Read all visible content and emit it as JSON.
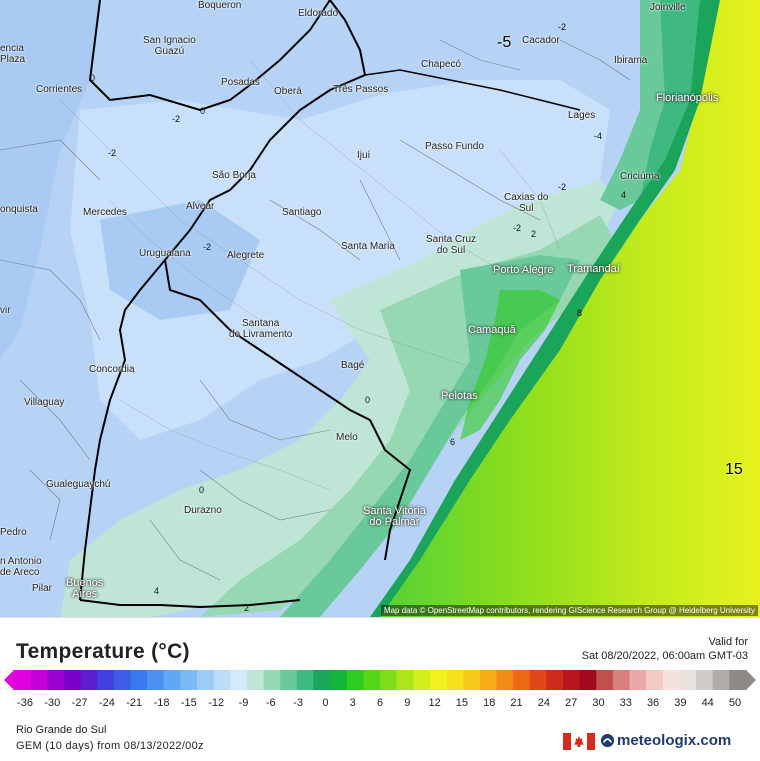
{
  "map": {
    "attribution": "Map data © OpenStreetMap contributors, rendering GIScience Research Group @ Heidelberg University",
    "cities": [
      {
        "name": "Boqueron"
      },
      {
        "name": "Eldorado"
      },
      {
        "name": "Joinville"
      },
      {
        "name": "San Ignacio\nGuazú"
      },
      {
        "name": "Cacador"
      },
      {
        "name": "Ibirama"
      },
      {
        "name": "encia\nPlaza"
      },
      {
        "name": "Corrientes"
      },
      {
        "name": "Posadas"
      },
      {
        "name": "Oberá"
      },
      {
        "name": "Chapecó"
      },
      {
        "name": "Três Passos"
      },
      {
        "name": "Florianópolis"
      },
      {
        "name": "Lages"
      },
      {
        "name": "Passo Fundo"
      },
      {
        "name": "Ijuí"
      },
      {
        "name": "São Borja"
      },
      {
        "name": "Criciúma"
      },
      {
        "name": "onquista"
      },
      {
        "name": "Mercedes"
      },
      {
        "name": "Alvear"
      },
      {
        "name": "Santiago"
      },
      {
        "name": "Caxias do\nSul"
      },
      {
        "name": "Uruguaiana"
      },
      {
        "name": "Alegrete"
      },
      {
        "name": "Santa Maria"
      },
      {
        "name": "Santa Cruz\ndo Sul"
      },
      {
        "name": "Porto Alegre"
      },
      {
        "name": "Tramandaí"
      },
      {
        "name": "vir"
      },
      {
        "name": "Santana\ndo Livramento"
      },
      {
        "name": "Camaquã"
      },
      {
        "name": "Concordia"
      },
      {
        "name": "Bagé"
      },
      {
        "name": "Villaguay"
      },
      {
        "name": "Pelotas"
      },
      {
        "name": "Melo"
      },
      {
        "name": "Gualeguaychú"
      },
      {
        "name": "Santa Vitória\ndo Palmar"
      },
      {
        "name": "Durazno"
      },
      {
        "name": "Pedro"
      },
      {
        "name": "n Antonio\nde Areco"
      },
      {
        "name": "Pilar"
      },
      {
        "name": "Buenos\nAires"
      }
    ],
    "contour_labels": [
      "-5",
      "-2",
      "-2",
      "-4",
      "-2",
      "0",
      "-2",
      "-2",
      "-2",
      "0",
      "2",
      "4",
      "0",
      "8",
      "6",
      "0",
      "4",
      "2",
      "15"
    ]
  },
  "footer": {
    "title": "Temperature (°C)",
    "valid_label": "Valid for",
    "valid_date": "Sat 08/20/2022, 06:00am GMT-03",
    "region": "Rio Grande do Sul",
    "model": "GEM (10 days) from 08/13/2022/00z",
    "brand": "meteologix.com"
  },
  "colorbar": {
    "ticks": [
      "-36",
      "-30",
      "-27",
      "-24",
      "-21",
      "-18",
      "-15",
      "-12",
      "-9",
      "-6",
      "-3",
      "0",
      "3",
      "6",
      "9",
      "12",
      "15",
      "18",
      "21",
      "24",
      "27",
      "30",
      "33",
      "36",
      "39",
      "44",
      "50"
    ],
    "colors": [
      "#e000e0",
      "#c500d8",
      "#9b00d0",
      "#7a00c8",
      "#5c1fd0",
      "#4040e0",
      "#3d5de8",
      "#3a78ef",
      "#4a92f2",
      "#5ea8f5",
      "#7cbaf6",
      "#9ccbf8",
      "#bcdcf9",
      "#d6e8fb",
      "#bfe5d6",
      "#96d8b2",
      "#6ac99a",
      "#3fb882",
      "#1aa55a",
      "#12b53a",
      "#2ecb22",
      "#55d61a",
      "#7fdd18",
      "#a9e61a",
      "#d2ee1c",
      "#f1f21e",
      "#f5e21c",
      "#f7c91a",
      "#f6ad18",
      "#f38b18",
      "#ee6a18",
      "#e2461a",
      "#cf2a1c",
      "#b8161e",
      "#a3091e",
      "#c0504e",
      "#d8807c",
      "#eaa9a8",
      "#f3c9c6",
      "#f7e1df",
      "#e8e1de",
      "#cfcac8",
      "#b0aca9",
      "#8c8986"
    ]
  },
  "colors": {
    "cold": "#b9d6f7",
    "cool": "#9ccbf8",
    "mild": "#6ac99a",
    "ocean_warm": "#2ecb22",
    "ocean_hot": "#f1f21e"
  }
}
